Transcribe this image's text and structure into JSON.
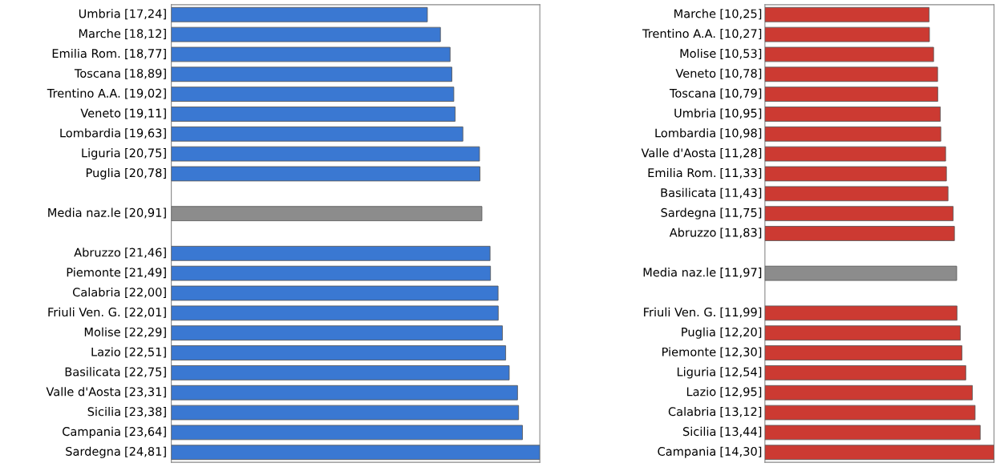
{
  "chart_data": [
    {
      "type": "bar",
      "orientation": "horizontal",
      "categories": [
        "Umbria",
        "Marche",
        "Emilia Rom.",
        "Toscana",
        "Trentino A.A.",
        "Veneto",
        "Lombardia",
        "Liguria",
        "Puglia",
        null,
        "Media naz.le",
        null,
        "Abruzzo",
        "Piemonte",
        "Calabria",
        "Friuli Ven. G.",
        "Molise",
        "Lazio",
        "Basilicata",
        "Valle d'Aosta",
        "Sicilia",
        "Campania",
        "Sardegna"
      ],
      "values": [
        17.24,
        18.12,
        18.77,
        18.89,
        19.02,
        19.11,
        19.63,
        20.75,
        20.78,
        null,
        20.91,
        null,
        21.46,
        21.49,
        22.0,
        22.01,
        22.29,
        22.51,
        22.75,
        23.31,
        23.38,
        23.64,
        24.81
      ],
      "value_labels": [
        "[17,24]",
        "[18,12]",
        "[18,77]",
        "[18,89]",
        "[19,02]",
        "[19,11]",
        "[19,63]",
        "[20,75]",
        "[20,78]",
        null,
        "[20,91]",
        null,
        "[21,46]",
        "[21,49]",
        "[22,00]",
        "[22,01]",
        "[22,29]",
        "[22,51]",
        "[22,75]",
        "[23,31]",
        "[23,38]",
        "[23,64]",
        "[24,81]"
      ],
      "colors": [
        "#3a78d2",
        "#3a78d2",
        "#3a78d2",
        "#3a78d2",
        "#3a78d2",
        "#3a78d2",
        "#3a78d2",
        "#3a78d2",
        "#3a78d2",
        null,
        "#8c8c8c",
        null,
        "#3a78d2",
        "#3a78d2",
        "#3a78d2",
        "#3a78d2",
        "#3a78d2",
        "#3a78d2",
        "#3a78d2",
        "#3a78d2",
        "#3a78d2",
        "#3a78d2",
        "#3a78d2"
      ],
      "tick_labels": "y"
    },
    {
      "type": "bar",
      "orientation": "horizontal",
      "categories": [
        "Marche",
        "Trentino A.A.",
        "Molise",
        "Veneto",
        "Toscana",
        "Umbria",
        "Lombardia",
        "Valle d'Aosta",
        "Emilia Rom.",
        "Basilicata",
        "Sardegna",
        "Abruzzo",
        null,
        "Media naz.le",
        null,
        "Friuli Ven. G.",
        "Puglia",
        "Piemonte",
        "Liguria",
        "Lazio",
        "Calabria",
        "Sicilia",
        "Campania"
      ],
      "values": [
        10.25,
        10.27,
        10.53,
        10.78,
        10.79,
        10.95,
        10.98,
        11.28,
        11.33,
        11.43,
        11.75,
        11.83,
        null,
        11.97,
        null,
        11.99,
        12.2,
        12.3,
        12.54,
        12.95,
        13.12,
        13.44,
        14.3
      ],
      "value_labels": [
        "[10,25]",
        "[10,27]",
        "[10,53]",
        "[10,78]",
        "[10,79]",
        "[10,95]",
        "[10,98]",
        "[11,28]",
        "[11,33]",
        "[11,43]",
        "[11,75]",
        "[11,83]",
        null,
        "[11,97]",
        null,
        "[11,99]",
        "[12,20]",
        "[12,30]",
        "[12,54]",
        "[12,95]",
        "[13,12]",
        "[13,44]",
        "[14,30]"
      ],
      "colors": [
        "#cc3a32",
        "#cc3a32",
        "#cc3a32",
        "#cc3a32",
        "#cc3a32",
        "#cc3a32",
        "#cc3a32",
        "#cc3a32",
        "#cc3a32",
        "#cc3a32",
        "#cc3a32",
        "#cc3a32",
        null,
        "#8c8c8c",
        null,
        "#cc3a32",
        "#cc3a32",
        "#cc3a32",
        "#cc3a32",
        "#cc3a32",
        "#cc3a32",
        "#cc3a32",
        "#cc3a32"
      ],
      "tick_labels": "y"
    }
  ]
}
